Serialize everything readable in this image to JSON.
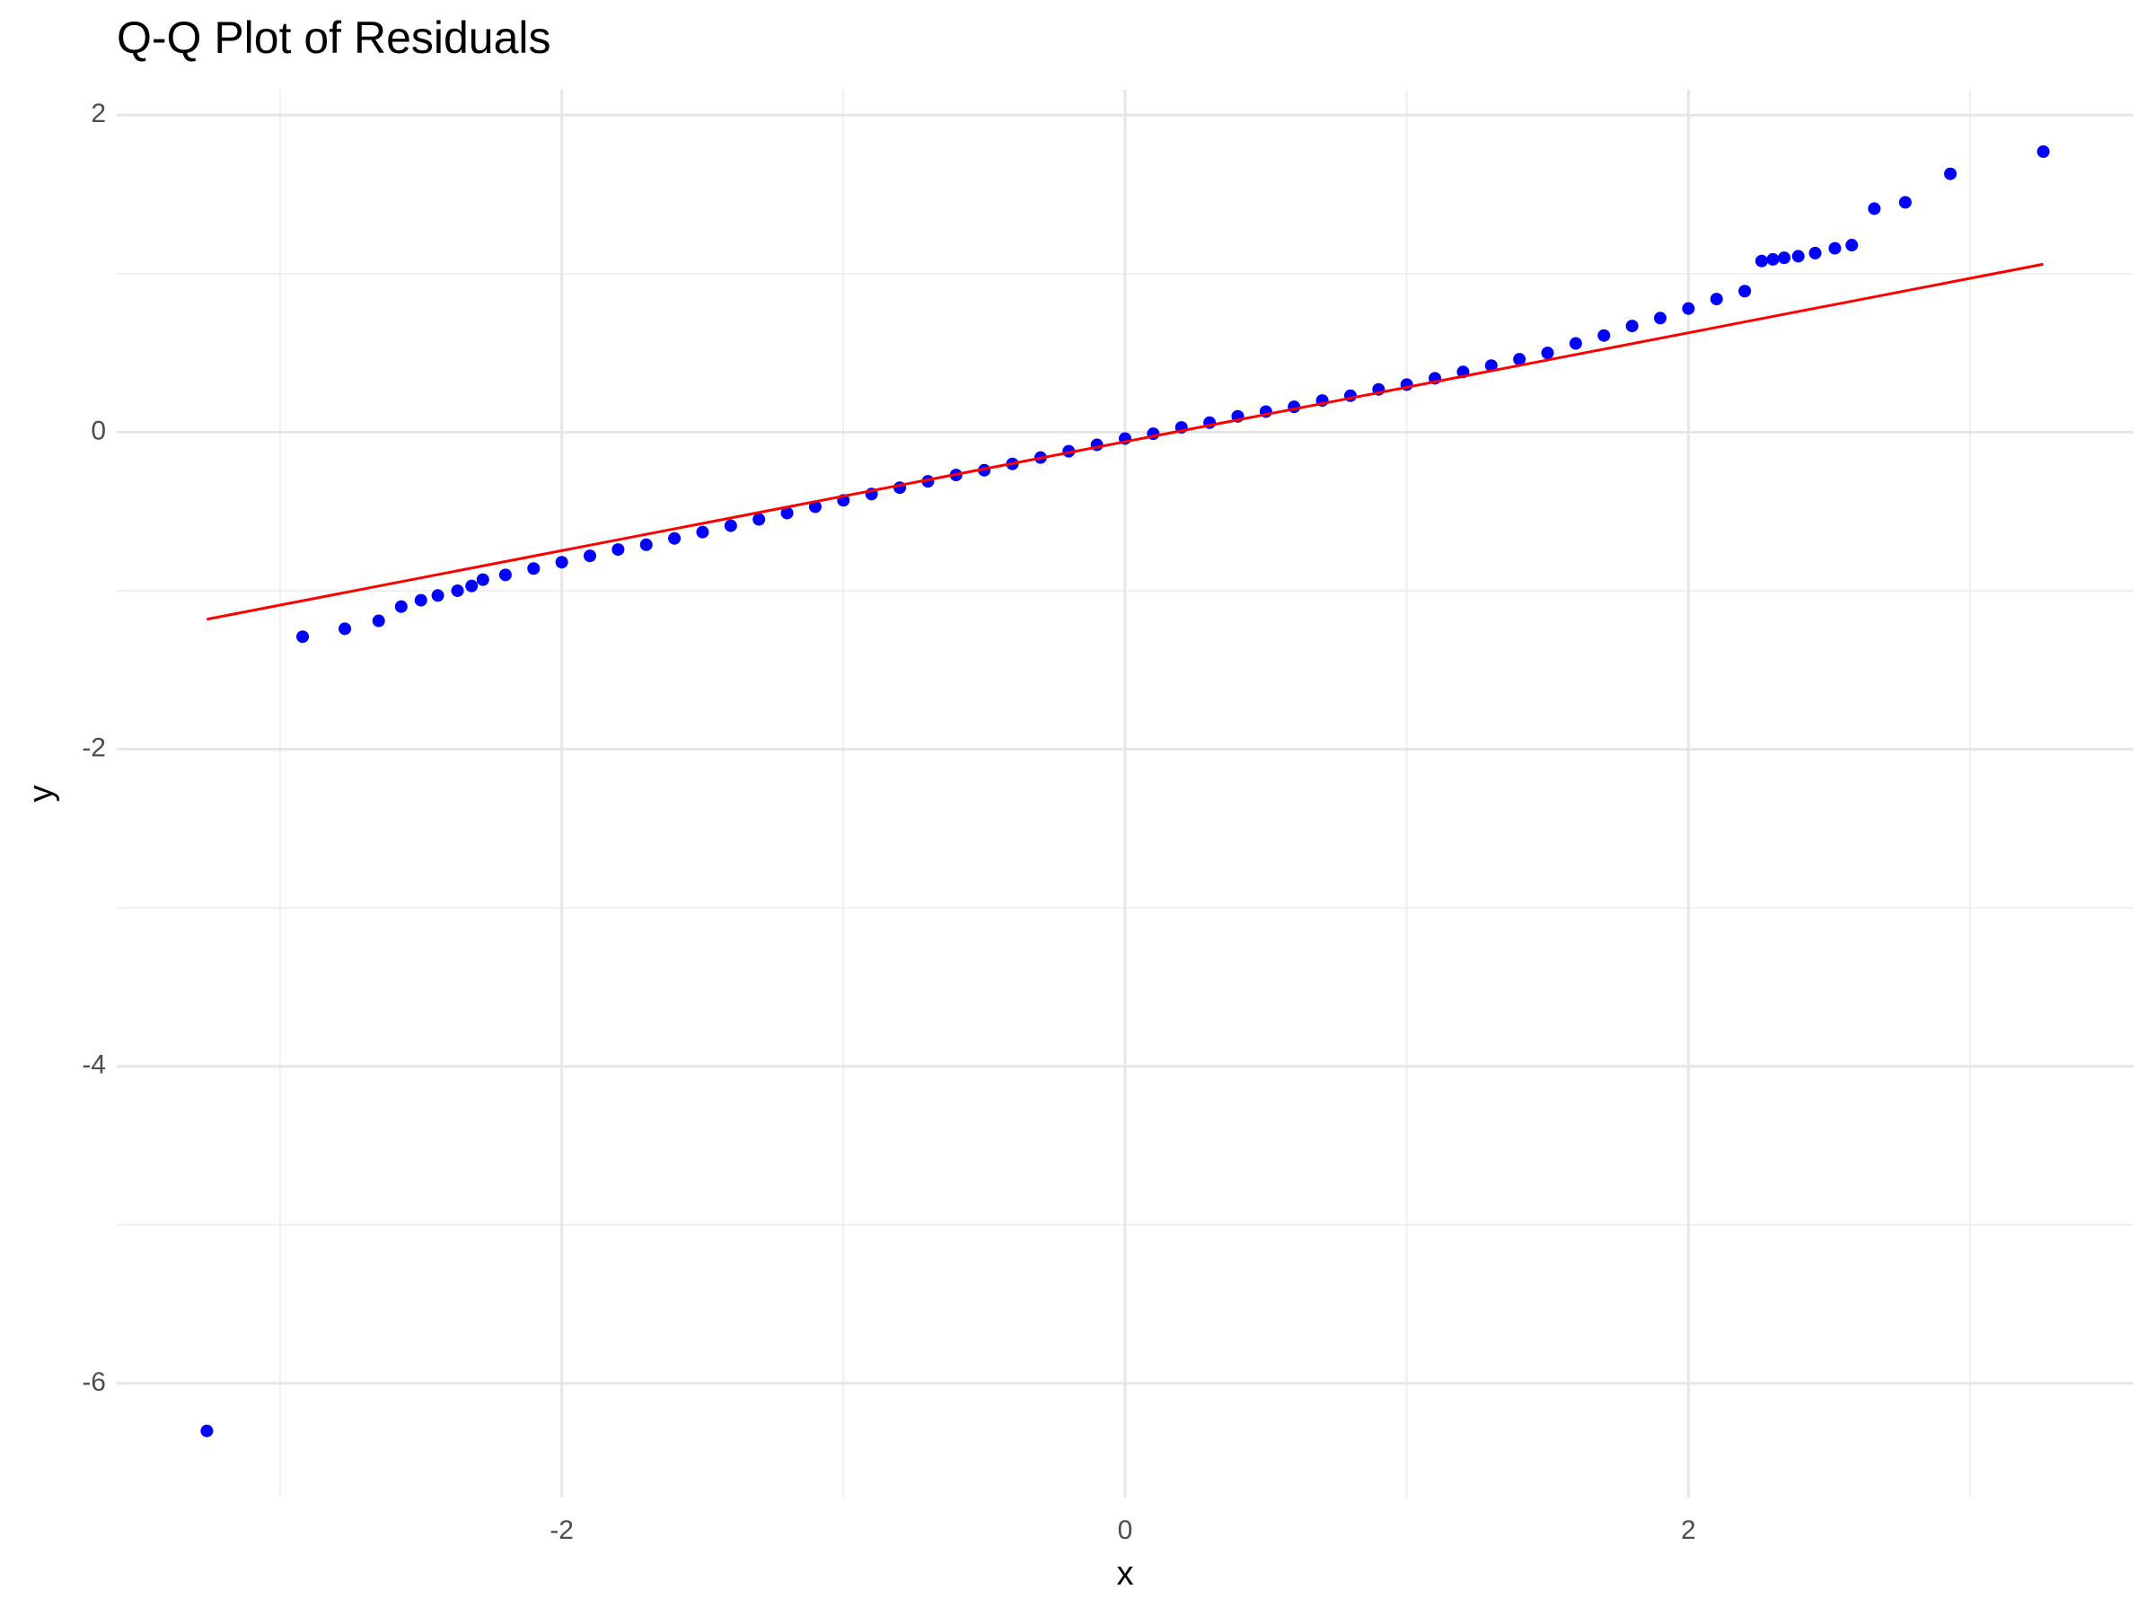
{
  "chart_data": {
    "type": "scatter",
    "title": "Q-Q Plot of Residuals",
    "x_label": "x",
    "y_label": "y",
    "xlim": [
      -3.58,
      3.58
    ],
    "ylim": [
      -6.72,
      2.16
    ],
    "xticks": [
      -2,
      0,
      2
    ],
    "yticks": [
      2,
      0,
      -2,
      -4,
      -6
    ],
    "xminor": [
      -3,
      -1,
      1,
      3
    ],
    "yminor": [
      1,
      -1,
      -3,
      -5
    ],
    "grid": true,
    "series": [
      {
        "color": "#0000ff",
        "x": [
          -3.26,
          -2.92,
          -2.77,
          -2.65,
          -2.57,
          -2.5,
          -2.44,
          -2.37,
          -2.32,
          -2.28,
          -2.2,
          -2.1,
          -2.0,
          -1.9,
          -1.8,
          -1.7,
          -1.6,
          -1.5,
          -1.4,
          -1.3,
          -1.2,
          -1.1,
          -1.0,
          -0.9,
          -0.8,
          -0.7,
          -0.6,
          -0.5,
          -0.4,
          -0.3,
          -0.2,
          -0.1,
          0,
          0.1,
          0.2,
          0.3,
          0.4,
          0.5,
          0.6,
          0.7,
          0.8,
          0.9,
          1.0,
          1.1,
          1.2,
          1.3,
          1.4,
          1.5,
          1.6,
          1.7,
          1.8,
          1.9,
          2.0,
          2.1,
          2.2,
          2.26,
          2.3,
          2.34,
          2.39,
          2.45,
          2.52,
          2.58,
          2.66,
          2.77,
          2.93,
          3.26
        ],
        "values": [
          -6.3,
          -1.29,
          -1.24,
          -1.19,
          -1.1,
          -1.06,
          -1.03,
          -1.0,
          -0.97,
          -0.93,
          -0.9,
          -0.86,
          -0.82,
          -0.78,
          -0.74,
          -0.71,
          -0.67,
          -0.63,
          -0.59,
          -0.55,
          -0.51,
          -0.47,
          -0.43,
          -0.39,
          -0.35,
          -0.31,
          -0.27,
          -0.24,
          -0.2,
          -0.16,
          -0.12,
          -0.08,
          -0.04,
          -0.01,
          0.03,
          0.06,
          0.1,
          0.13,
          0.16,
          0.2,
          0.23,
          0.27,
          0.3,
          0.34,
          0.38,
          0.42,
          0.46,
          0.5,
          0.56,
          0.61,
          0.67,
          0.72,
          0.78,
          0.84,
          0.89,
          1.08,
          1.09,
          1.1,
          1.11,
          1.13,
          1.16,
          1.18,
          1.41,
          1.45,
          1.63,
          1.77
        ]
      }
    ],
    "reference_line": {
      "color": "#ff0000",
      "x": [
        -3.26,
        3.26
      ],
      "values": [
        -1.18,
        1.06
      ]
    }
  }
}
